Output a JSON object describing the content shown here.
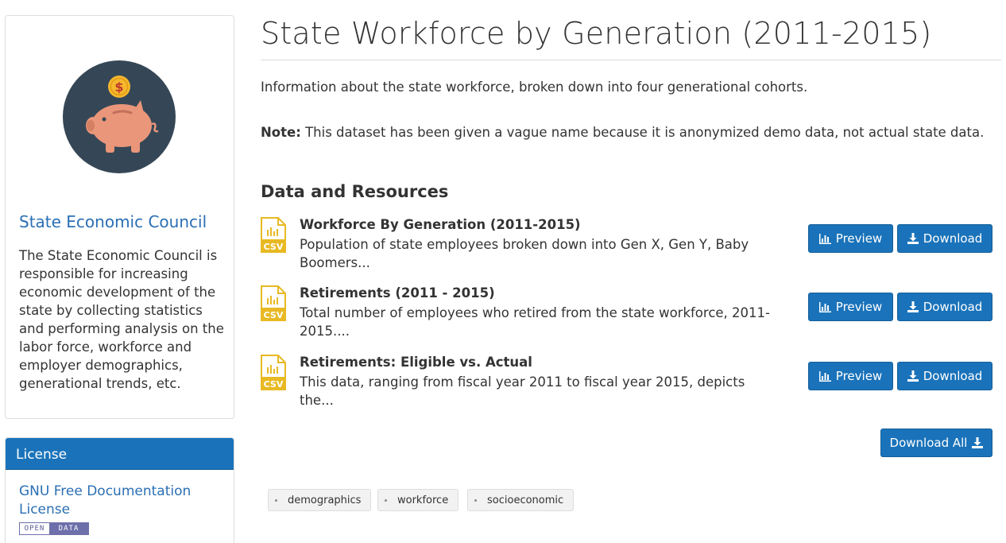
{
  "organization": {
    "name": "State Economic Council",
    "description": "The State Economic Council is responsible for increasing economic development of the state by collecting statistics and performing analysis on the labor force, workforce and employer demographics, generational trends, etc."
  },
  "license": {
    "heading": "License",
    "name": "GNU Free Documentation License",
    "badge_left": "OPEN",
    "badge_right": "DATA"
  },
  "dataset": {
    "title": "State Workforce by Generation (2011-2015)",
    "intro": "Information about the state workforce, broken down into four generational cohorts.",
    "note_label": "Note:",
    "note_text": " This dataset has been given a vague name because it is anonymized demo data, not actual state data."
  },
  "resources_section": {
    "heading": "Data and Resources",
    "preview_label": "Preview",
    "download_label": "Download",
    "download_all_label": "Download All",
    "items": [
      {
        "format": "CSV",
        "title": "Workforce By Generation (2011-2015)",
        "description": "Population of state employees broken down into Gen X, Gen Y, Baby Boomers..."
      },
      {
        "format": "CSV",
        "title": "Retirements (2011 - 2015)",
        "description": "Total number of employees who retired from the state workforce, 2011-2015...."
      },
      {
        "format": "CSV",
        "title": "Retirements: Eligible vs. Actual",
        "description": "This data, ranging from fiscal year 2011 to fiscal year 2015, depicts the..."
      }
    ]
  },
  "tags": [
    "demographics",
    "workforce",
    "socioeconomic"
  ],
  "colors": {
    "primary_button": "#1a73ba",
    "link": "#2a6fb4",
    "logo_circle": "#354756",
    "piggy": "#e9967a",
    "coin": "#f5b82e",
    "csv_icon": "#e8b923"
  }
}
